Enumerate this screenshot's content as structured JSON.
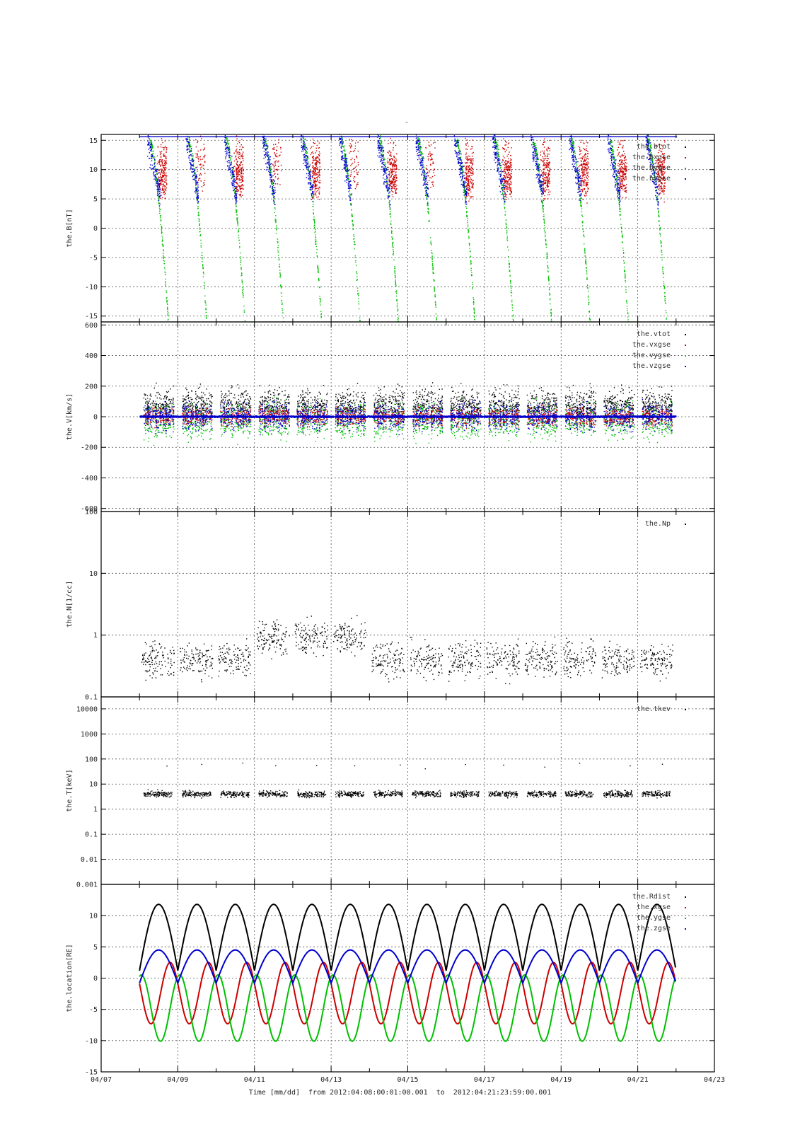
{
  "figure": {
    "title": "-",
    "xlabel_prefix": "Time [mm/dd]",
    "from_label": "from",
    "to_label": "to",
    "start": "2012:04:08:00:01:00.001",
    "end": "2012:04:21:23:59:00.001"
  },
  "colors": {
    "black": "#000000",
    "red": "#cc0000",
    "green": "#00c000",
    "blue": "#0000cc"
  },
  "chart_data": [
    {
      "id": "B",
      "type": "scatter",
      "ylabel": "the.B[nT]",
      "yscale": "linear",
      "ylim": [
        -16,
        16
      ],
      "yticks": [
        15,
        10,
        5,
        0,
        -5,
        -10,
        -15
      ],
      "ytick_labels": [
        "15",
        "10",
        "5",
        "0",
        "-5",
        "-10",
        "-15"
      ],
      "xlim": [
        0,
        16
      ],
      "xticks": [
        0,
        2,
        4,
        6,
        8,
        10,
        12,
        14,
        16
      ],
      "xtick_labels": [
        "04/07",
        "04/09",
        "04/11",
        "04/13",
        "04/15",
        "04/17",
        "04/19",
        "04/21",
        "04/23"
      ],
      "grid": true,
      "legend_position": "top-right",
      "series": [
        {
          "name": "the.btot",
          "color": "black"
        },
        {
          "name": "the.bxgse",
          "color": "red"
        },
        {
          "name": "the.bygse",
          "color": "green"
        },
        {
          "name": "the.bzgse",
          "color": "blue"
        }
      ],
      "inbound_days": [
        1.55,
        2.55,
        3.55,
        4.55,
        5.55,
        6.55,
        7.55,
        8.55,
        9.55,
        10.55,
        11.55,
        12.55,
        13.55,
        14.55
      ],
      "data_range_days": [
        1.0,
        14.99
      ]
    },
    {
      "id": "V",
      "type": "scatter",
      "ylabel": "the.V[km/s]",
      "yscale": "linear",
      "ylim": [
        -620,
        620
      ],
      "yticks": [
        600,
        400,
        200,
        0,
        -200,
        -400,
        -600
      ],
      "ytick_labels": [
        "600",
        "400",
        "200",
        "0",
        "-200",
        "-400",
        "-600"
      ],
      "xlim": [
        0,
        16
      ],
      "grid": true,
      "legend_position": "top-right",
      "series": [
        {
          "name": "the.vtot",
          "color": "black"
        },
        {
          "name": "the.vxgse",
          "color": "red"
        },
        {
          "name": "the.vygse",
          "color": "green"
        },
        {
          "name": "the.vzgse",
          "color": "blue"
        }
      ],
      "typical_vtot_range": [
        0,
        400
      ],
      "typical_component_range": [
        -300,
        300
      ]
    },
    {
      "id": "N",
      "type": "scatter",
      "ylabel": "the.N[1/cc]",
      "yscale": "log",
      "ylim": [
        0.1,
        100
      ],
      "yticks": [
        100,
        10,
        1,
        0.1
      ],
      "ytick_labels": [
        "100",
        "10",
        "1",
        "0.1"
      ],
      "xlim": [
        0,
        16
      ],
      "grid": true,
      "legend_position": "top-right",
      "series": [
        {
          "name": "the.Np",
          "color": "black"
        }
      ],
      "typical_range": [
        0.1,
        2.5
      ]
    },
    {
      "id": "T",
      "type": "scatter",
      "ylabel": "the.T[keV]",
      "yscale": "log",
      "ylim": [
        0.001,
        30000
      ],
      "yticks": [
        10000,
        1000,
        100,
        10,
        1,
        0.1,
        0.01,
        0.001
      ],
      "ytick_labels": [
        "10000",
        "1000",
        "100",
        "10",
        "1",
        "0.1",
        "0.01",
        "0.001"
      ],
      "xlim": [
        0,
        16
      ],
      "grid": true,
      "legend_position": "top-right",
      "series": [
        {
          "name": "the.tkev",
          "color": "black"
        }
      ],
      "typical_range": [
        1,
        8
      ]
    },
    {
      "id": "location",
      "type": "line",
      "ylabel": "the.location[RE]",
      "yscale": "linear",
      "ylim": [
        -15,
        15
      ],
      "yticks": [
        10,
        5,
        0,
        -5,
        -10,
        -15
      ],
      "ytick_labels": [
        "10",
        "5",
        "0",
        "-5",
        "-10",
        "-15"
      ],
      "xlim": [
        0,
        16
      ],
      "xticks": [
        0,
        2,
        4,
        6,
        8,
        10,
        12,
        14,
        16
      ],
      "xtick_labels": [
        "04/07",
        "04/09",
        "04/11",
        "04/13",
        "04/15",
        "04/17",
        "04/19",
        "04/21",
        "04/23"
      ],
      "grid": true,
      "legend_position": "top-right",
      "series": [
        {
          "name": "the.Rdist",
          "color": "black",
          "min": 1.5,
          "max": 11.8
        },
        {
          "name": "the.xgse",
          "color": "red",
          "min": -7.3,
          "max": 2.5
        },
        {
          "name": "the.ygse",
          "color": "green",
          "min": -10.1,
          "max": 0.5
        },
        {
          "name": "the.zgse",
          "color": "blue",
          "min": -0.8,
          "max": 4.5
        }
      ],
      "orbit_period_days": 1.0,
      "apogee_days": [
        1.55,
        2.55,
        3.55,
        4.55,
        5.55,
        6.55,
        7.55,
        8.55,
        9.55,
        10.55,
        11.55,
        12.55,
        13.55,
        14.55
      ],
      "data_range_days": [
        1.0,
        14.99
      ]
    }
  ]
}
